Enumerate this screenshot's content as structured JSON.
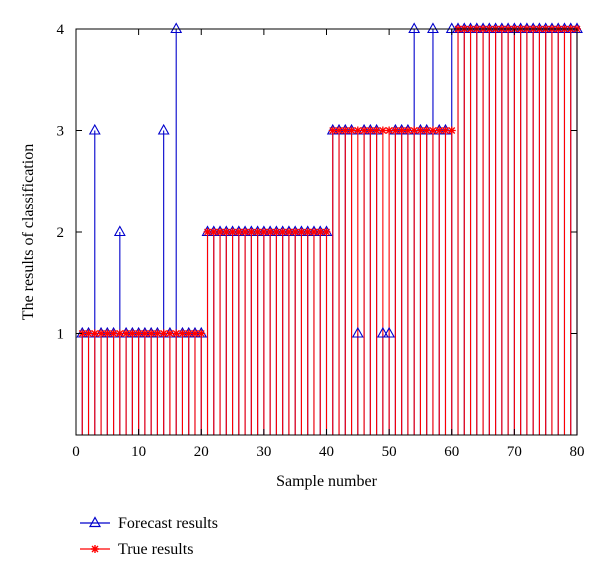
{
  "chart_data": {
    "type": "stem",
    "xlabel": "Sample number",
    "ylabel": "The results of classification",
    "xlim": [
      0,
      80
    ],
    "ylim": [
      0,
      4
    ],
    "xticks": [
      0,
      10,
      20,
      30,
      40,
      50,
      60,
      70,
      80
    ],
    "yticks": [
      1,
      2,
      3,
      4
    ],
    "grid": false,
    "legend_position": "bottom-left",
    "x": [
      1,
      2,
      3,
      4,
      5,
      6,
      7,
      8,
      9,
      10,
      11,
      12,
      13,
      14,
      15,
      16,
      17,
      18,
      19,
      20,
      21,
      22,
      23,
      24,
      25,
      26,
      27,
      28,
      29,
      30,
      31,
      32,
      33,
      34,
      35,
      36,
      37,
      38,
      39,
      40,
      41,
      42,
      43,
      44,
      45,
      46,
      47,
      48,
      49,
      50,
      51,
      52,
      53,
      54,
      55,
      56,
      57,
      58,
      59,
      60,
      61,
      62,
      63,
      64,
      65,
      66,
      67,
      68,
      69,
      70,
      71,
      72,
      73,
      74,
      75,
      76,
      77,
      78,
      79,
      80
    ],
    "series": [
      {
        "name": "Forecast results",
        "color": "#0000cc",
        "marker": "triangle",
        "values": [
          1,
          1,
          3,
          1,
          1,
          1,
          2,
          1,
          1,
          1,
          1,
          1,
          1,
          3,
          1,
          4,
          1,
          1,
          1,
          1,
          2,
          2,
          2,
          2,
          2,
          2,
          2,
          2,
          2,
          2,
          2,
          2,
          2,
          2,
          2,
          2,
          2,
          2,
          2,
          2,
          3,
          3,
          3,
          3,
          1,
          3,
          3,
          3,
          1,
          1,
          3,
          3,
          3,
          4,
          3,
          3,
          4,
          3,
          3,
          4,
          4,
          4,
          4,
          4,
          4,
          4,
          4,
          4,
          4,
          4,
          4,
          4,
          4,
          4,
          4,
          4,
          4,
          4,
          4,
          4
        ]
      },
      {
        "name": "True results",
        "color": "#ff0000",
        "marker": "star",
        "values": [
          1,
          1,
          1,
          1,
          1,
          1,
          1,
          1,
          1,
          1,
          1,
          1,
          1,
          1,
          1,
          1,
          1,
          1,
          1,
          1,
          2,
          2,
          2,
          2,
          2,
          2,
          2,
          2,
          2,
          2,
          2,
          2,
          2,
          2,
          2,
          2,
          2,
          2,
          2,
          2,
          3,
          3,
          3,
          3,
          3,
          3,
          3,
          3,
          3,
          3,
          3,
          3,
          3,
          3,
          3,
          3,
          3,
          3,
          3,
          3,
          4,
          4,
          4,
          4,
          4,
          4,
          4,
          4,
          4,
          4,
          4,
          4,
          4,
          4,
          4,
          4,
          4,
          4,
          4,
          4
        ]
      }
    ]
  }
}
